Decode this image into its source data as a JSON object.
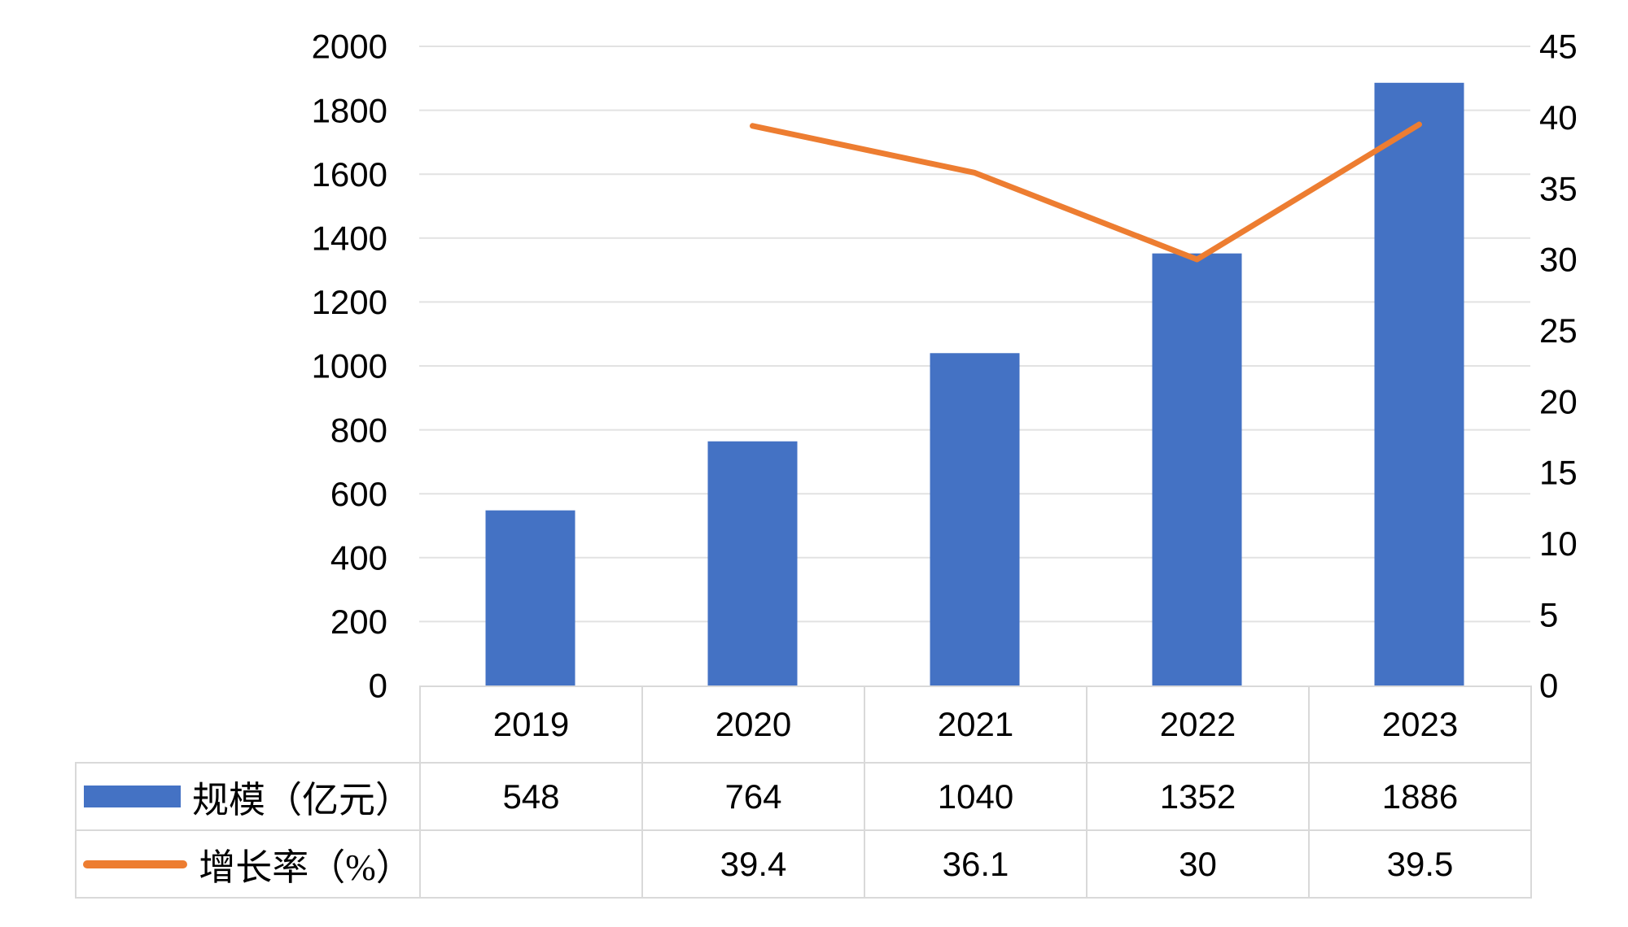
{
  "colors": {
    "bar": "#4472C4",
    "line": "#ED7D31",
    "gridline": "#E2E2E2",
    "table_border": "#D9D9D9",
    "text": "#000000",
    "background": "#FFFFFF"
  },
  "chart_data": {
    "type": "combo",
    "title": "",
    "categories": [
      "2019",
      "2020",
      "2021",
      "2022",
      "2023"
    ],
    "series": [
      {
        "name": "规模（亿元）",
        "type": "bar",
        "axis": "left",
        "color": "#4472C4",
        "values": [
          548,
          764,
          1040,
          1352,
          1886
        ]
      },
      {
        "name": "增长率（%）",
        "type": "line",
        "axis": "right",
        "color": "#ED7D31",
        "values": [
          null,
          39.4,
          36.1,
          30,
          39.5
        ]
      }
    ],
    "left_axis": {
      "min": 0,
      "max": 2000,
      "step": 200,
      "ticks": [
        "2000",
        "1800",
        "1600",
        "1400",
        "1200",
        "1000",
        "800",
        "600",
        "400",
        "200",
        "0"
      ]
    },
    "right_axis": {
      "min": 0,
      "max": 45,
      "step": 5,
      "ticks": [
        "45",
        "40",
        "35",
        "30",
        "25",
        "20",
        "15",
        "10",
        "5",
        "0"
      ]
    },
    "grid": "horizontal",
    "legend_position": "table-left"
  }
}
